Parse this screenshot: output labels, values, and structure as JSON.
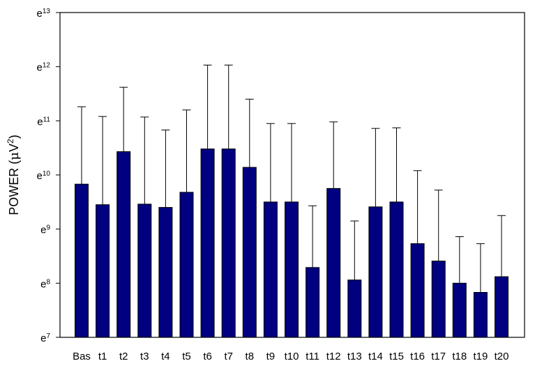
{
  "chart_data": {
    "type": "bar",
    "title": "",
    "xlabel": "",
    "ylabel": "POWER  (μV²)",
    "ylabel_parts": {
      "text": "POWER  (",
      "mu": "μ",
      "unit": "V",
      "sup": "2",
      "close": ")"
    },
    "yscale": "log-natural",
    "ylim_exponent": [
      7,
      13
    ],
    "y_ticks": [
      {
        "base": "e",
        "exp": "7"
      },
      {
        "base": "e",
        "exp": "8"
      },
      {
        "base": "e",
        "exp": "9"
      },
      {
        "base": "e",
        "exp": "10"
      },
      {
        "base": "e",
        "exp": "11"
      },
      {
        "base": "e",
        "exp": "12"
      },
      {
        "base": "e",
        "exp": "13"
      }
    ],
    "categories": [
      "Bas",
      "t1",
      "t2",
      "t3",
      "t4",
      "t5",
      "t6",
      "t7",
      "t8",
      "t9",
      "t10",
      "t11",
      "t12",
      "t13",
      "t14",
      "t15",
      "t16",
      "t17",
      "t18",
      "t19",
      "t20"
    ],
    "values_ln": [
      9.83,
      9.45,
      10.43,
      9.46,
      9.4,
      9.68,
      10.48,
      10.48,
      10.14,
      9.5,
      9.5,
      8.29,
      9.75,
      8.06,
      9.41,
      9.5,
      8.73,
      8.41,
      8.0,
      7.83,
      8.12
    ],
    "error_upper_ln": [
      11.26,
      11.08,
      11.62,
      11.07,
      10.83,
      11.2,
      12.03,
      12.03,
      11.4,
      10.95,
      10.95,
      9.43,
      10.98,
      9.15,
      10.86,
      10.87,
      10.08,
      9.72,
      8.86,
      8.73,
      9.25
    ],
    "bar_color": "#000080",
    "grid": false,
    "legend": "none"
  }
}
